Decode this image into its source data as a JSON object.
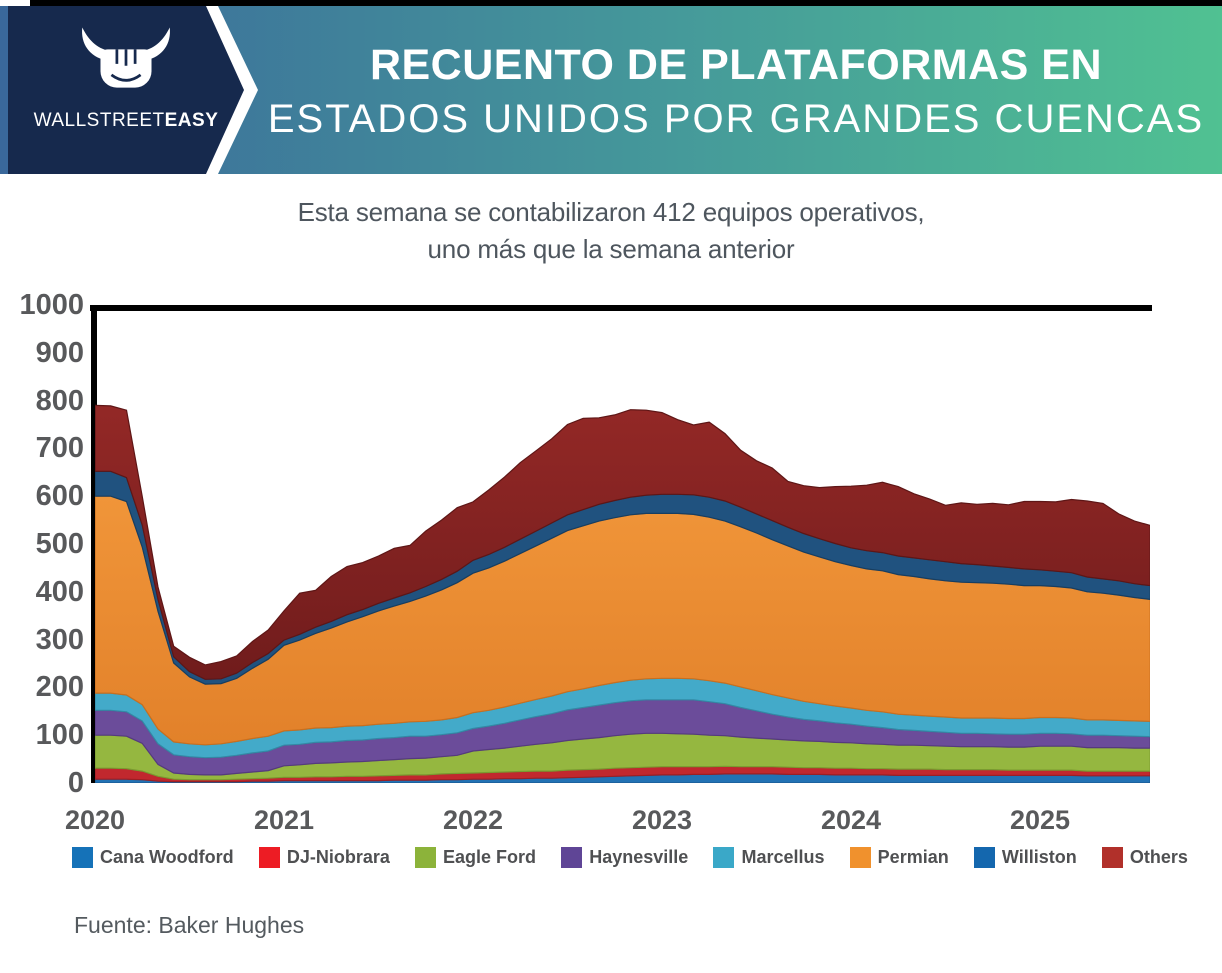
{
  "header": {
    "brand_light": "WALLSTREET",
    "brand_bold": "EASY",
    "title_line1": "RECUENTO DE PLATAFORMAS EN",
    "title_line2": "ESTADOS UNIDOS POR GRANDES CUENCAS",
    "colors": {
      "navy": "#16294d",
      "gradient_left": "#3a689b",
      "gradient_right": "#50c192"
    }
  },
  "subtitle": {
    "line1": "Esta semana se contabilizaron 412 equipos operativos,",
    "line2": "uno más que la semana anterior"
  },
  "source": "Fuente: Baker Hughes",
  "chart_data": {
    "type": "area",
    "stacked": true,
    "title": "Recuento de plataformas en Estados Unidos por grandes cuencas",
    "xlabel": "",
    "ylabel": "",
    "ylim": [
      0,
      1000
    ],
    "y_ticks": [
      0,
      100,
      200,
      300,
      400,
      500,
      600,
      700,
      800,
      900,
      1000
    ],
    "x_start_year": 2020,
    "x_step_years": 0.0833333,
    "x_end_year": 2025.583,
    "x_tick_labels": [
      "2020",
      "2021",
      "2022",
      "2023",
      "2024",
      "2025"
    ],
    "grid": false,
    "legend_position": "bottom",
    "series": [
      {
        "id": "cana-woodford",
        "name": "Cana Woodford",
        "swatch": "#1572b8",
        "fill": "#2272b4",
        "stroke": "#185a92",
        "values": [
          8,
          8,
          8,
          7,
          4,
          3,
          3,
          3,
          3,
          3,
          4,
          4,
          5,
          5,
          5,
          5,
          5,
          5,
          5,
          6,
          6,
          6,
          7,
          7,
          8,
          8,
          9,
          9,
          10,
          10,
          11,
          12,
          13,
          14,
          15,
          16,
          17,
          17,
          18,
          18,
          19,
          19,
          19,
          19,
          18,
          18,
          18,
          17,
          17,
          17,
          17,
          16,
          16,
          16,
          16,
          16,
          16,
          16,
          16,
          16,
          16,
          16,
          16,
          15,
          15,
          15,
          15,
          15
        ]
      },
      {
        "id": "dj-niobrara",
        "name": "DJ-Niobrara",
        "swatch": "#ed1c24",
        "fill": "#c1282e",
        "stroke": "#9b1f24",
        "values": [
          23,
          23,
          22,
          18,
          10,
          5,
          4,
          4,
          4,
          5,
          5,
          6,
          7,
          7,
          8,
          8,
          9,
          9,
          10,
          10,
          11,
          11,
          12,
          13,
          13,
          14,
          14,
          15,
          15,
          15,
          16,
          16,
          16,
          17,
          17,
          17,
          17,
          17,
          16,
          16,
          16,
          15,
          15,
          15,
          15,
          14,
          14,
          14,
          14,
          13,
          13,
          13,
          13,
          13,
          12,
          12,
          12,
          12,
          11,
          11,
          11,
          11,
          11,
          10,
          10,
          10,
          10,
          10
        ]
      },
      {
        "id": "eagle-ford",
        "name": "Eagle Ford",
        "swatch": "#8cb33a",
        "fill": "#95b740",
        "stroke": "#7a9a30",
        "values": [
          69,
          69,
          68,
          58,
          25,
          13,
          11,
          10,
          10,
          12,
          14,
          16,
          24,
          26,
          28,
          29,
          30,
          31,
          32,
          33,
          34,
          35,
          36,
          38,
          46,
          48,
          50,
          53,
          56,
          59,
          62,
          64,
          66,
          68,
          70,
          71,
          70,
          69,
          68,
          66,
          64,
          62,
          60,
          58,
          57,
          56,
          55,
          54,
          53,
          52,
          51,
          50,
          50,
          49,
          49,
          48,
          48,
          48,
          48,
          48,
          50,
          50,
          50,
          49,
          49,
          49,
          48,
          48
        ]
      },
      {
        "id": "haynesville",
        "name": "Haynesville",
        "swatch": "#5f4596",
        "fill": "#6b4c9a",
        "stroke": "#553a7e",
        "values": [
          52,
          52,
          51,
          47,
          43,
          38,
          37,
          36,
          37,
          38,
          40,
          41,
          43,
          43,
          44,
          44,
          45,
          45,
          46,
          46,
          47,
          46,
          46,
          47,
          47,
          49,
          52,
          55,
          58,
          61,
          64,
          66,
          68,
          69,
          70,
          70,
          70,
          71,
          72,
          70,
          67,
          62,
          57,
          52,
          48,
          45,
          43,
          41,
          39,
          37,
          35,
          33,
          31,
          30,
          29,
          28,
          28,
          27,
          27,
          27,
          27,
          27,
          26,
          26,
          26,
          25,
          25,
          24
        ]
      },
      {
        "id": "marcellus",
        "name": "Marcellus",
        "swatch": "#3aa8c8",
        "fill": "#43aac9",
        "stroke": "#3389a5",
        "values": [
          36,
          36,
          35,
          34,
          31,
          27,
          27,
          27,
          28,
          29,
          30,
          31,
          30,
          30,
          30,
          30,
          30,
          30,
          30,
          30,
          30,
          31,
          31,
          32,
          33,
          33,
          34,
          35,
          36,
          37,
          38,
          39,
          41,
          42,
          43,
          44,
          45,
          45,
          44,
          44,
          43,
          43,
          42,
          41,
          40,
          38,
          36,
          35,
          34,
          33,
          33,
          32,
          32,
          32,
          32,
          32,
          32,
          33,
          33,
          33,
          33,
          33,
          33,
          32,
          32,
          32,
          32,
          32
        ]
      },
      {
        "id": "permian",
        "name": "Permian",
        "swatch": "#f0912d",
        "fill": "#f09539",
        "fill2": "#e2812a",
        "stroke": "#c96f1e",
        "values": [
          412,
          412,
          405,
          330,
          246,
          165,
          140,
          127,
          126,
          132,
          147,
          161,
          179,
          188,
          198,
          208,
          218,
          228,
          237,
          245,
          252,
          262,
          272,
          282,
          292,
          298,
          305,
          313,
          321,
          330,
          337,
          341,
          344,
          345,
          346,
          346,
          345,
          345,
          344,
          342,
          339,
          335,
          330,
          324,
          318,
          312,
          307,
          302,
          298,
          296,
          295,
          292,
          290,
          287,
          285,
          284,
          283,
          282,
          281,
          278,
          276,
          274,
          272,
          268,
          265,
          262,
          258,
          255
        ]
      },
      {
        "id": "williston",
        "name": "Williston",
        "swatch": "#1467ae",
        "fill": "#20527f",
        "stroke": "#173e61",
        "values": [
          52,
          52,
          50,
          46,
          25,
          13,
          11,
          10,
          10,
          11,
          12,
          12,
          11,
          12,
          13,
          14,
          15,
          15,
          16,
          17,
          18,
          20,
          22,
          24,
          27,
          28,
          29,
          30,
          31,
          32,
          33,
          34,
          35,
          36,
          37,
          38,
          40,
          40,
          41,
          42,
          42,
          41,
          40,
          40,
          39,
          39,
          38,
          38,
          37,
          38,
          38,
          39,
          39,
          40,
          40,
          39,
          38,
          36,
          35,
          35,
          33,
          32,
          32,
          31,
          30,
          30,
          29,
          29
        ]
      },
      {
        "id": "others",
        "name": "Others",
        "swatch": "#b1302a",
        "fill": "#932826",
        "fill2": "#701c1c",
        "stroke": "#5e1616",
        "values": [
          138,
          137,
          141,
          60,
          26,
          22,
          30,
          30,
          36,
          36,
          44,
          49,
          61,
          86,
          77,
          94,
          101,
          98,
          99,
          104,
          99,
          116,
          124,
          133,
          122,
          135,
          147,
          160,
          168,
          176,
          189,
          191,
          181,
          179,
          183,
          178,
          171,
          156,
          146,
          157,
          141,
          119,
          111,
          110,
          96,
          100,
          107,
          119,
          129,
          137,
          147,
          145,
          134,
          127,
          118,
          127,
          126,
          131,
          131,
          141,
          143,
          145,
          153,
          159,
          158,
          140,
          131,
          126
        ]
      }
    ]
  }
}
